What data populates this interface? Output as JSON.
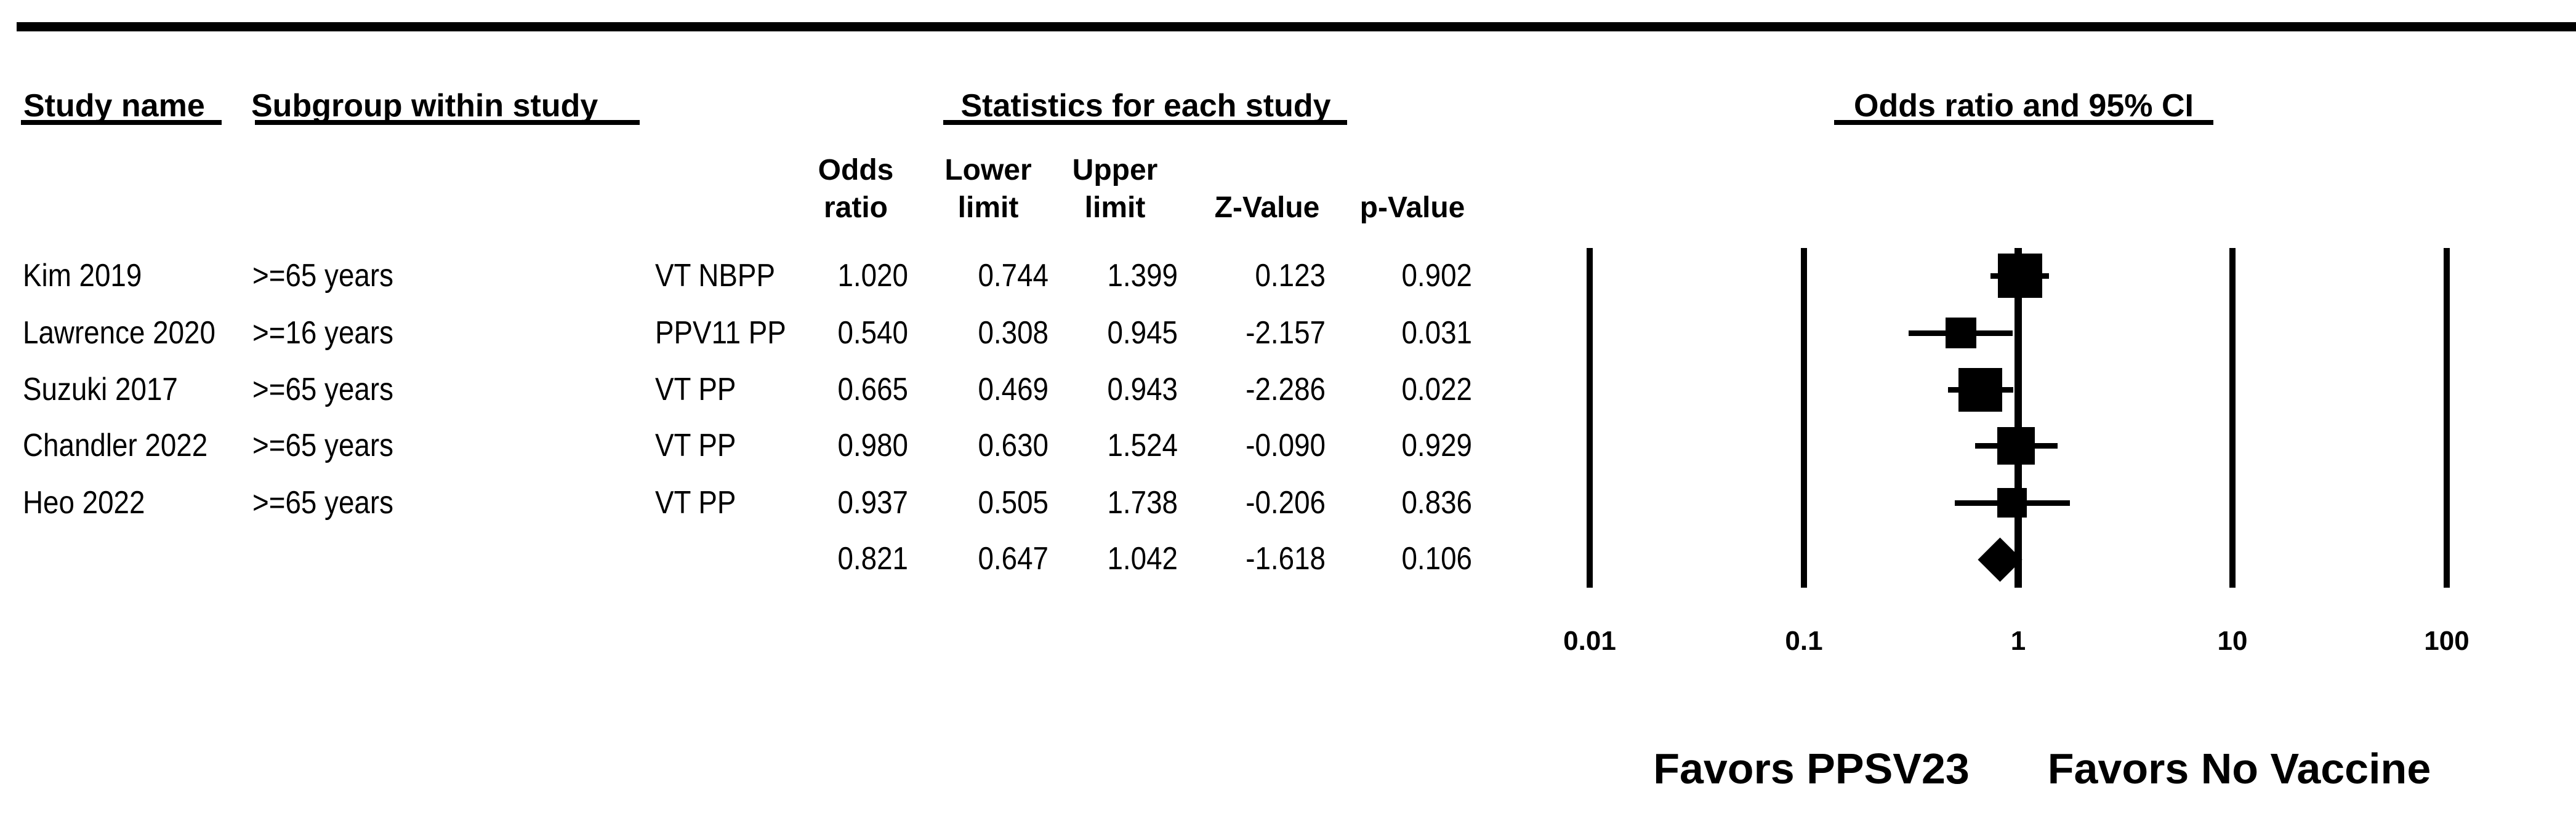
{
  "figure": {
    "group_headers": {
      "study_name": "Study name",
      "subgroup": "Subgroup within study",
      "statistics": "Statistics for each study",
      "or_ci": "Odds ratio and 95% CI"
    },
    "stat_columns": [
      {
        "line1": "Odds",
        "line2": "ratio"
      },
      {
        "line1": "Lower",
        "line2": "limit"
      },
      {
        "line1": "Upper",
        "line2": "limit"
      },
      {
        "line1": "",
        "line2": "Z-Value"
      },
      {
        "line1": "",
        "line2": "p-Value"
      }
    ],
    "favors_left": "Favors PPSV23",
    "favors_right": "Favors No Vaccine"
  },
  "chart_data": {
    "type": "forest",
    "x_scale": "log",
    "xlim": [
      0.01,
      100
    ],
    "x_ticks": [
      {
        "value": 0.01,
        "label": "0.01"
      },
      {
        "value": 0.1,
        "label": "0.1"
      },
      {
        "value": 1,
        "label": "1"
      },
      {
        "value": 10,
        "label": "10"
      },
      {
        "value": 100,
        "label": "100"
      }
    ],
    "columns": [
      "Odds ratio",
      "Lower limit",
      "Upper limit",
      "Z-Value",
      "p-Value"
    ],
    "studies": [
      {
        "study": "Kim 2019",
        "subgroup": ">=65 years",
        "population": "VT NBPP",
        "odds_ratio": "1.020",
        "lower_limit": "0.744",
        "upper_limit": "1.399",
        "z_value": "0.123",
        "p_value": "0.902",
        "marker_size": 72
      },
      {
        "study": "Lawrence 2020",
        "subgroup": ">=16 years",
        "population": "PPV11 PP",
        "odds_ratio": "0.540",
        "lower_limit": "0.308",
        "upper_limit": "0.945",
        "z_value": "-2.157",
        "p_value": "0.031",
        "marker_size": 50
      },
      {
        "study": "Suzuki 2017",
        "subgroup": ">=65 years",
        "population": "VT PP",
        "odds_ratio": "0.665",
        "lower_limit": "0.469",
        "upper_limit": "0.943",
        "z_value": "-2.286",
        "p_value": "0.022",
        "marker_size": 71
      },
      {
        "study": "Chandler 2022",
        "subgroup": ">=65 years",
        "population": "VT PP",
        "odds_ratio": "0.980",
        "lower_limit": "0.630",
        "upper_limit": "1.524",
        "z_value": "-0.090",
        "p_value": "0.929",
        "marker_size": 61
      },
      {
        "study": "Heo 2022",
        "subgroup": ">=65 years",
        "population": "VT PP",
        "odds_ratio": "0.937",
        "lower_limit": "0.505",
        "upper_limit": "1.738",
        "z_value": "-0.206",
        "p_value": "0.836",
        "marker_size": 48
      }
    ],
    "summary": {
      "odds_ratio": "0.821",
      "lower_limit": "0.647",
      "upper_limit": "1.042",
      "z_value": "-1.618",
      "p_value": "0.106"
    },
    "footer_left": "Favors PPSV23",
    "footer_right": "Favors No Vaccine"
  }
}
